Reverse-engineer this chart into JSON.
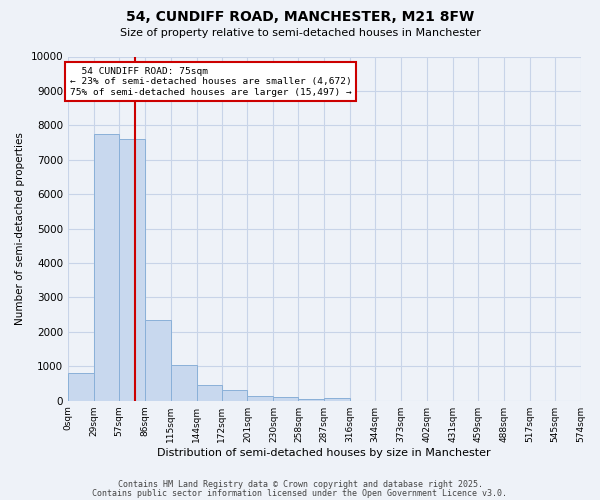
{
  "title1": "54, CUNDIFF ROAD, MANCHESTER, M21 8FW",
  "title2": "Size of property relative to semi-detached houses in Manchester",
  "xlabel": "Distribution of semi-detached houses by size in Manchester",
  "ylabel": "Number of semi-detached properties",
  "bar_color": "#c8d8ee",
  "bar_edge_color": "#8ab0d8",
  "grid_color": "#c8d4e8",
  "bg_color": "#eef2f8",
  "property_line_color": "#cc0000",
  "property_size": 75,
  "property_label": "54 CUNDIFF ROAD: 75sqm",
  "pct_smaller": 23,
  "pct_larger": 75,
  "count_smaller": 4672,
  "count_larger": 15497,
  "bins": [
    0,
    29,
    57,
    86,
    115,
    144,
    172,
    201,
    230,
    258,
    287,
    316,
    344,
    373,
    402,
    431,
    459,
    488,
    517,
    545,
    574
  ],
  "counts": [
    800,
    7750,
    7600,
    2350,
    1030,
    450,
    300,
    145,
    100,
    50,
    80,
    0,
    0,
    0,
    0,
    0,
    0,
    0,
    0,
    0
  ],
  "tick_labels": [
    "0sqm",
    "29sqm",
    "57sqm",
    "86sqm",
    "115sqm",
    "144sqm",
    "172sqm",
    "201sqm",
    "230sqm",
    "258sqm",
    "287sqm",
    "316sqm",
    "344sqm",
    "373sqm",
    "402sqm",
    "431sqm",
    "459sqm",
    "488sqm",
    "517sqm",
    "545sqm",
    "574sqm"
  ],
  "ylim": [
    0,
    10000
  ],
  "yticks": [
    0,
    1000,
    2000,
    3000,
    4000,
    5000,
    6000,
    7000,
    8000,
    9000,
    10000
  ],
  "footer1": "Contains HM Land Registry data © Crown copyright and database right 2025.",
  "footer2": "Contains public sector information licensed under the Open Government Licence v3.0.",
  "annotation_box_color": "#cc0000",
  "title1_fontsize": 10,
  "title2_fontsize": 8,
  "ylabel_fontsize": 7.5,
  "xlabel_fontsize": 8
}
